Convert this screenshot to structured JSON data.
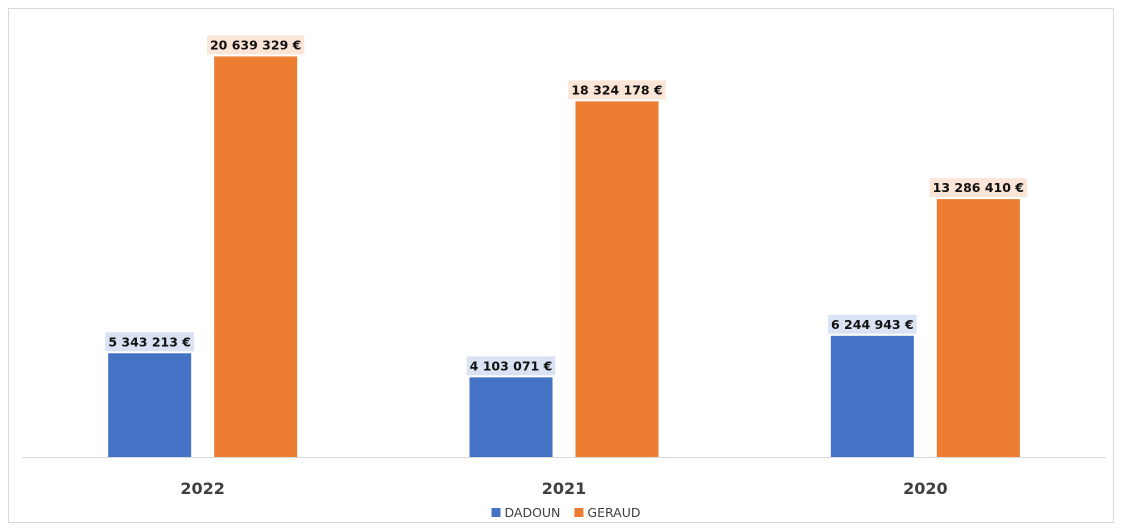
{
  "chart_data": {
    "type": "bar",
    "categories": [
      "2022",
      "2021",
      "2020"
    ],
    "series": [
      {
        "name": "DADOUN",
        "color": "#4472C4",
        "label_bg": "#DAE3F3",
        "values": [
          5343213,
          4103071,
          6244943
        ],
        "labels": [
          "5 343 213 €",
          "4 103 071 €",
          "6 244 943 €"
        ]
      },
      {
        "name": "GERAUD",
        "color": "#ED7D31",
        "label_bg": "#FBE5D6",
        "values": [
          20639329,
          18324178,
          13286410
        ],
        "labels": [
          "20 639 329 €",
          "18 324 178 €",
          "13 286 410 €"
        ]
      }
    ],
    "ylim": [
      0,
      22000000
    ],
    "grid": false,
    "legend": "bottom",
    "title": "",
    "xlabel": "",
    "ylabel": ""
  }
}
